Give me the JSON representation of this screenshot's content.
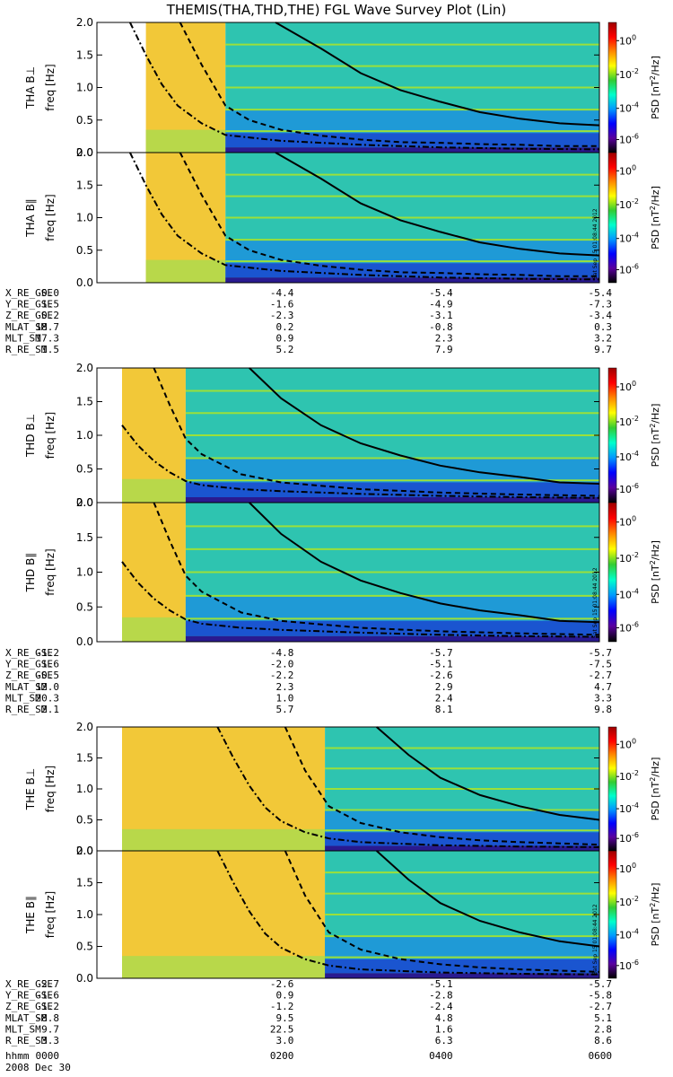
{
  "title": "THEMIS(THA,THD,THE) FGL Wave Survey Plot (Lin)",
  "colorbar": {
    "label_prefix": "PSD [nT",
    "label_exp": "2",
    "label_suffix": "/Hz]",
    "tick_exponents": [
      "0",
      "-2",
      "-4",
      "-6"
    ],
    "tick_base": "10",
    "scale": "log",
    "colors": [
      "#000000",
      "#5a009e",
      "#0000ff",
      "#0099ff",
      "#00ffcc",
      "#33cc33",
      "#ffff00",
      "#ff8800",
      "#ff0000",
      "#9e0000"
    ]
  },
  "timestamp": "Sat Sep 15 01:08:44 2012",
  "ephemeris_headers": [
    "X_RE_GSE",
    "Y_RE_GSE",
    "Z_RE_GSE",
    "MLAT_SM",
    "MLT_SM",
    "R_RE_SM"
  ],
  "time_axis": {
    "label": "hhmm",
    "date": "2008 Dec 30",
    "ticks": [
      "0000",
      "0200",
      "0400",
      "0600"
    ]
  },
  "chart_data": [
    {
      "type": "heatmap",
      "probe": "THA",
      "xlim": [
        "00:00",
        "06:00"
      ],
      "panels": [
        {
          "ylabel": "THA B⊥",
          "unit_label": "freq [Hz]",
          "yticks": [
            "0.0",
            "0.5",
            "1.0",
            "1.5",
            "2.0"
          ],
          "ylim": [
            0,
            2.0
          ]
        },
        {
          "ylabel": "THA B∥",
          "unit_label": "freq [Hz]",
          "yticks": [
            "0.0",
            "0.5",
            "1.0",
            "1.5",
            "2.0"
          ],
          "ylim": [
            0,
            2.0
          ]
        }
      ],
      "data_start_hours": 0.3,
      "high_psd_end_hours": 1.3,
      "harmonic_lines_hz": [
        0.33,
        0.66,
        1.0,
        1.33,
        1.66
      ],
      "curves": {
        "solid": {
          "hours": [
            1.93,
            2.5,
            3.0,
            3.5,
            4.0,
            4.5,
            5.0,
            5.5,
            6.0
          ],
          "freq": [
            2.0,
            1.6,
            1.22,
            0.96,
            0.78,
            0.62,
            0.52,
            0.45,
            0.42
          ]
        },
        "dashed": {
          "hours": [
            0.73,
            1.0,
            1.3,
            1.6,
            2.0,
            2.5,
            3.0,
            3.5,
            4.0,
            4.5,
            5.0,
            5.5,
            6.0
          ],
          "freq": [
            2.0,
            1.35,
            0.72,
            0.5,
            0.35,
            0.26,
            0.2,
            0.16,
            0.15,
            0.13,
            0.12,
            0.1,
            0.1
          ]
        },
        "dotdash": {
          "hours": [
            0.1,
            0.3,
            0.5,
            0.7,
            1.0,
            1.3,
            2.0,
            3.0,
            4.0,
            5.0,
            6.0
          ],
          "freq": [
            2.0,
            1.5,
            1.05,
            0.72,
            0.45,
            0.27,
            0.18,
            0.12,
            0.08,
            0.06,
            0.05
          ]
        }
      },
      "ephemeris": [
        [
          "0.0",
          "-4.4",
          "-5.4",
          "-5.4"
        ],
        [
          "1.5",
          "-1.6",
          "-4.9",
          "-7.3"
        ],
        [
          "0.2",
          "-2.3",
          "-3.1",
          "-3.4"
        ],
        [
          "18.7",
          "0.2",
          "-0.8",
          "0.3"
        ],
        [
          "17.3",
          "0.9",
          "2.3",
          "3.2"
        ],
        [
          "1.5",
          "5.2",
          "7.9",
          "9.7"
        ]
      ]
    },
    {
      "type": "heatmap",
      "probe": "THD",
      "xlim": [
        "00:00",
        "06:00"
      ],
      "panels": [
        {
          "ylabel": "THD B⊥",
          "unit_label": "freq [Hz]",
          "yticks": [
            "0.0",
            "0.5",
            "1.0",
            "1.5",
            "2.0"
          ],
          "ylim": [
            0,
            2.0
          ]
        },
        {
          "ylabel": "THD B∥",
          "unit_label": "freq [Hz]",
          "yticks": [
            "0.0",
            "0.5",
            "1.0",
            "1.5",
            "2.0"
          ],
          "ylim": [
            0,
            2.0
          ]
        }
      ],
      "data_start_hours": 0.0,
      "high_psd_end_hours": 0.8,
      "harmonic_lines_hz": [
        0.33,
        0.66,
        1.0,
        1.33,
        1.66
      ],
      "curves": {
        "solid": {
          "hours": [
            1.6,
            2.0,
            2.5,
            3.0,
            3.5,
            4.0,
            4.5,
            5.0,
            5.5,
            6.0
          ],
          "freq": [
            2.0,
            1.55,
            1.15,
            0.88,
            0.7,
            0.55,
            0.45,
            0.38,
            0.3,
            0.28
          ]
        },
        "dashed": {
          "hours": [
            0.4,
            0.6,
            0.8,
            1.0,
            1.5,
            2.0,
            3.0,
            4.0,
            5.0,
            6.0
          ],
          "freq": [
            2.0,
            1.45,
            0.95,
            0.72,
            0.42,
            0.3,
            0.2,
            0.15,
            0.12,
            0.1
          ]
        },
        "dotdash": {
          "hours": [
            0.0,
            0.2,
            0.4,
            0.6,
            0.8,
            1.0,
            1.5,
            2.0,
            3.0,
            4.0,
            5.0,
            6.0
          ],
          "freq": [
            1.15,
            0.85,
            0.62,
            0.45,
            0.32,
            0.26,
            0.2,
            0.17,
            0.13,
            0.1,
            0.08,
            0.07
          ]
        }
      },
      "ephemeris": [
        [
          "-1.2",
          "-4.8",
          "-5.7",
          "-5.7"
        ],
        [
          "1.6",
          "-2.0",
          "-5.1",
          "-7.5"
        ],
        [
          "-0.5",
          "-2.2",
          "-2.6",
          "-2.7"
        ],
        [
          "12.0",
          "2.3",
          "2.9",
          "4.7"
        ],
        [
          "20.3",
          "1.0",
          "2.4",
          "3.3"
        ],
        [
          "2.1",
          "5.7",
          "8.1",
          "9.8"
        ]
      ]
    },
    {
      "type": "heatmap",
      "probe": "THE",
      "xlim": [
        "00:00",
        "06:00"
      ],
      "panels": [
        {
          "ylabel": "THE B⊥",
          "unit_label": "freq [Hz]",
          "yticks": [
            "0.0",
            "0.5",
            "1.0",
            "1.5",
            "2.0"
          ],
          "ylim": [
            0,
            2.0
          ]
        },
        {
          "ylabel": "THE B∥",
          "unit_label": "freq [Hz]",
          "yticks": [
            "0.0",
            "0.5",
            "1.0",
            "1.5",
            "2.0"
          ],
          "ylim": [
            0,
            2.0
          ]
        }
      ],
      "data_start_hours": 0.0,
      "high_psd_end_hours": 2.55,
      "harmonic_lines_hz": [
        0.33,
        0.66,
        1.0,
        1.33,
        1.66
      ],
      "curves": {
        "solid": {
          "hours": [
            3.2,
            3.6,
            4.0,
            4.5,
            5.0,
            5.5,
            6.0
          ],
          "freq": [
            2.0,
            1.55,
            1.18,
            0.9,
            0.72,
            0.58,
            0.5
          ]
        },
        "dashed": {
          "hours": [
            2.05,
            2.3,
            2.6,
            3.0,
            3.5,
            4.0,
            4.5,
            5.0,
            5.5,
            6.0
          ],
          "freq": [
            2.0,
            1.3,
            0.72,
            0.45,
            0.3,
            0.22,
            0.17,
            0.14,
            0.12,
            0.1
          ]
        },
        "dotdash": {
          "hours": [
            1.2,
            1.4,
            1.6,
            1.8,
            2.0,
            2.3,
            2.6,
            3.0,
            4.0,
            5.0,
            6.0
          ],
          "freq": [
            2.0,
            1.5,
            1.05,
            0.7,
            0.48,
            0.3,
            0.2,
            0.14,
            0.09,
            0.07,
            0.06
          ]
        }
      },
      "ephemeris": [
        [
          "2.7",
          "-2.6",
          "-5.1",
          "-5.7"
        ],
        [
          "-1.6",
          "0.9",
          "-2.8",
          "-5.8"
        ],
        [
          "1.2",
          "-1.2",
          "-2.4",
          "-2.7"
        ],
        [
          "-8.8",
          "9.5",
          "4.8",
          "5.1"
        ],
        [
          "9.7",
          "22.5",
          "1.6",
          "2.8"
        ],
        [
          "3.3",
          "3.0",
          "6.3",
          "8.6"
        ]
      ]
    }
  ]
}
